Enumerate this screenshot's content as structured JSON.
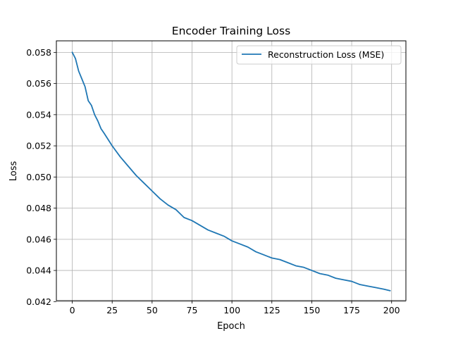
{
  "chart_data": {
    "type": "line",
    "title": "Encoder Training Loss",
    "xlabel": "Epoch",
    "ylabel": "Loss",
    "xlim": [
      -9.95,
      208.95
    ],
    "ylim": [
      0.04206,
      0.05874
    ],
    "xticks": [
      0,
      25,
      50,
      75,
      100,
      125,
      150,
      175,
      200
    ],
    "yticks": [
      0.042,
      0.044,
      0.046,
      0.048,
      0.05,
      0.052,
      0.054,
      0.056,
      0.058
    ],
    "ytick_labels": [
      "0.042",
      "0.044",
      "0.046",
      "0.048",
      "0.050",
      "0.052",
      "0.054",
      "0.056",
      "0.058"
    ],
    "grid": true,
    "legend_position": "top-right",
    "series": [
      {
        "name": "Reconstruction Loss (MSE)",
        "color": "#1f77b4",
        "x": [
          0,
          2,
          4,
          6,
          8,
          10,
          12,
          14,
          16,
          18,
          20,
          25,
          30,
          35,
          40,
          45,
          50,
          55,
          60,
          65,
          70,
          75,
          80,
          85,
          90,
          95,
          100,
          105,
          110,
          115,
          120,
          125,
          130,
          135,
          140,
          145,
          150,
          155,
          160,
          165,
          170,
          175,
          180,
          185,
          190,
          195,
          199
        ],
        "values": [
          0.058,
          0.0576,
          0.0568,
          0.0563,
          0.0558,
          0.0549,
          0.0546,
          0.054,
          0.0536,
          0.0531,
          0.0528,
          0.052,
          0.0513,
          0.0507,
          0.0501,
          0.0496,
          0.0491,
          0.0486,
          0.0482,
          0.0479,
          0.0474,
          0.0472,
          0.0469,
          0.0466,
          0.0464,
          0.0462,
          0.0459,
          0.0457,
          0.0455,
          0.0452,
          0.045,
          0.0448,
          0.0447,
          0.0445,
          0.0443,
          0.0442,
          0.044,
          0.0438,
          0.0437,
          0.0435,
          0.0434,
          0.0433,
          0.0431,
          0.043,
          0.0429,
          0.0428,
          0.0427
        ]
      }
    ]
  }
}
